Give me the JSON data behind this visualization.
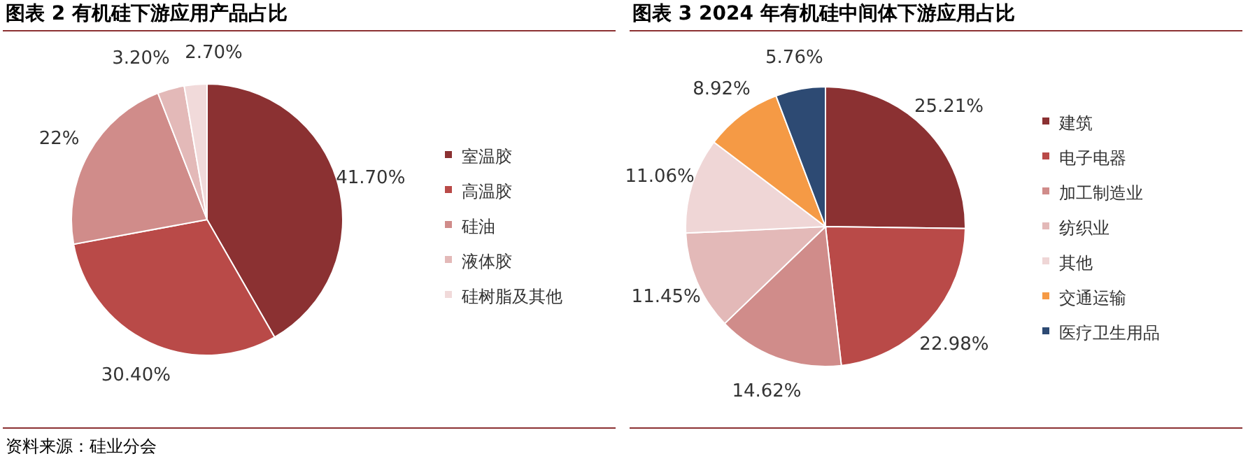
{
  "chart_data": [
    {
      "type": "pie",
      "title": "图表 2 有机硅下游应用产品占比",
      "categories": [
        "室温胶",
        "高温胶",
        "硅油",
        "液体胶",
        "硅树脂及其他"
      ],
      "values": [
        41.7,
        30.4,
        22,
        3.2,
        2.7
      ],
      "value_labels": [
        "41.70%",
        "30.40%",
        "22%",
        "3.20%",
        "2.70%"
      ],
      "colors": [
        "#8b3132",
        "#b94a48",
        "#d08c8a",
        "#e3b9b8",
        "#f1dada"
      ],
      "legend": "right",
      "annotations": [
        "资料来源：硅业分会"
      ]
    },
    {
      "type": "pie",
      "title": "图表 3 2024 年有机硅中间体下游应用占比",
      "categories": [
        "建筑",
        "电子电器",
        "加工制造业",
        "纺织业",
        "其他",
        "交通运输",
        "医疗卫生用品"
      ],
      "values": [
        25.21,
        22.98,
        14.62,
        11.45,
        11.06,
        8.92,
        5.76
      ],
      "value_labels": [
        "25.21%",
        "22.98%",
        "14.62%",
        "11.45%",
        "11.06%",
        "8.92%",
        "5.76%"
      ],
      "colors": [
        "#8b3132",
        "#b94a48",
        "#d08c8a",
        "#e3b9b8",
        "#efd6d6",
        "#f59a45",
        "#2d4a73"
      ],
      "legend": "right"
    }
  ]
}
